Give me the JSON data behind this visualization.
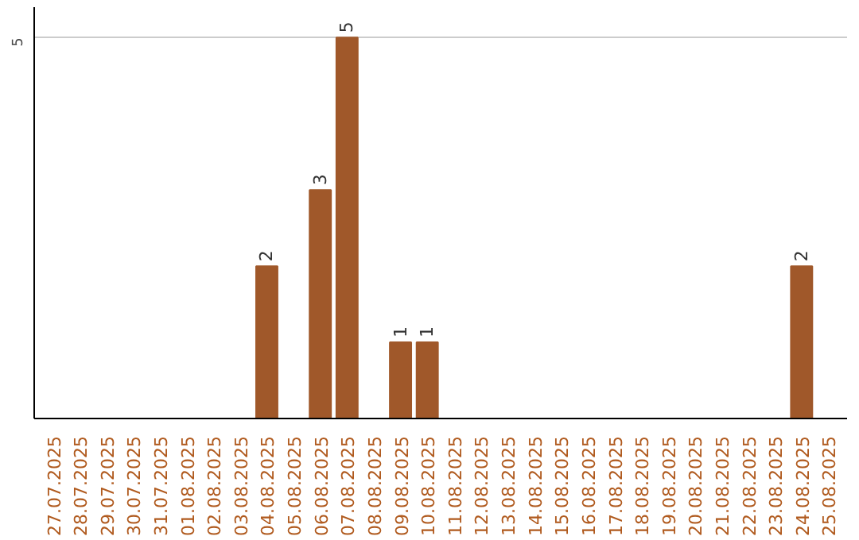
{
  "chart_data": {
    "type": "bar",
    "categories": [
      "27.07.2025",
      "28.07.2025",
      "29.07.2025",
      "30.07.2025",
      "31.07.2025",
      "01.08.2025",
      "02.08.2025",
      "03.08.2025",
      "04.08.2025",
      "05.08.2025",
      "06.08.2025",
      "07.08.2025",
      "08.08.2025",
      "09.08.2025",
      "10.08.2025",
      "11.08.2025",
      "12.08.2025",
      "13.08.2025",
      "14.08.2025",
      "15.08.2025",
      "16.08.2025",
      "17.08.2025",
      "18.08.2025",
      "19.08.2025",
      "20.08.2025",
      "21.08.2025",
      "22.08.2025",
      "23.08.2025",
      "24.08.2025",
      "25.08.2025"
    ],
    "values": [
      0,
      0,
      0,
      0,
      0,
      0,
      0,
      0,
      2,
      0,
      3,
      5,
      0,
      1,
      1,
      0,
      0,
      0,
      0,
      0,
      0,
      0,
      0,
      0,
      0,
      0,
      0,
      0,
      2,
      0
    ],
    "value_labels": [
      null,
      null,
      null,
      null,
      null,
      null,
      null,
      null,
      "2",
      null,
      "3",
      "5",
      null,
      "1",
      "1",
      null,
      null,
      null,
      null,
      null,
      null,
      null,
      null,
      null,
      null,
      null,
      null,
      null,
      "2",
      null
    ],
    "color": "#a0582a",
    "ylim": [
      0,
      5.4
    ],
    "yticks": [
      {
        "value": 0,
        "label": null
      },
      5
    ],
    "grid": "y"
  }
}
